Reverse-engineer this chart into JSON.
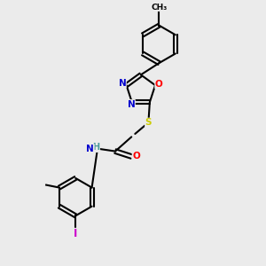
{
  "background_color": "#ebebeb",
  "line_color": "#000000",
  "atom_colors": {
    "N": "#0000cd",
    "O": "#ff0000",
    "S": "#cccc00",
    "I": "#cc00cc",
    "C": "#000000",
    "H": "#4a9a9a"
  },
  "figsize": [
    3.0,
    3.0
  ],
  "dpi": 100
}
